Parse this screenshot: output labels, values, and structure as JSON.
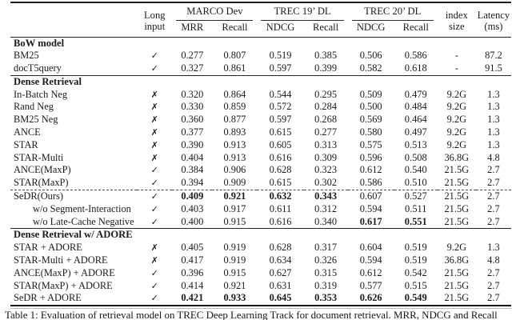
{
  "table": {
    "header": {
      "long_input": [
        "Long",
        "input"
      ],
      "groups": [
        {
          "label": "MARCO Dev",
          "sub": [
            "MRR",
            "Recall"
          ]
        },
        {
          "label": "TREC 19’ DL",
          "sub": [
            "NDCG",
            "Recall"
          ]
        },
        {
          "label": "TREC 20’ DL",
          "sub": [
            "NDCG",
            "Recall"
          ]
        }
      ],
      "index_size": [
        "index",
        "size"
      ],
      "latency": [
        "Latency",
        "(ms)"
      ]
    },
    "sections": [
      {
        "title": "BoW model",
        "rows": [
          {
            "name": "BM25",
            "long_input": "✓",
            "values": [
              "0.277",
              "0.807",
              "0.519",
              "0.385",
              "0.506",
              "0.586",
              "-",
              "87.2"
            ],
            "bold": []
          },
          {
            "name": "docT5query",
            "long_input": "✓",
            "values": [
              "0.327",
              "0.861",
              "0.597",
              "0.399",
              "0.582",
              "0.618",
              "-",
              "91.5"
            ],
            "bold": []
          }
        ]
      },
      {
        "title": "Dense Retrieval",
        "rows": [
          {
            "name": "In-Batch Neg",
            "long_input": "✗",
            "values": [
              "0.320",
              "0.864",
              "0.544",
              "0.295",
              "0.509",
              "0.479",
              "9.2G",
              "1.3"
            ],
            "bold": []
          },
          {
            "name": "Rand Neg",
            "long_input": "✗",
            "values": [
              "0.330",
              "0.859",
              "0.572",
              "0.284",
              "0.500",
              "0.484",
              "9.2G",
              "1.3"
            ],
            "bold": []
          },
          {
            "name": "BM25 Neg",
            "long_input": "✗",
            "values": [
              "0.360",
              "0.877",
              "0.597",
              "0.268",
              "0.569",
              "0.464",
              "9.2G",
              "1.3"
            ],
            "bold": []
          },
          {
            "name": "ANCE",
            "long_input": "✗",
            "values": [
              "0.377",
              "0.893",
              "0.615",
              "0.277",
              "0.580",
              "0.497",
              "9.2G",
              "1.3"
            ],
            "bold": []
          },
          {
            "name": "STAR",
            "long_input": "✗",
            "values": [
              "0.390",
              "0.913",
              "0.605",
              "0.313",
              "0.575",
              "0.513",
              "9.2G",
              "1.3"
            ],
            "bold": []
          },
          {
            "name": "STAR-Multi",
            "long_input": "✗",
            "values": [
              "0.404",
              "0.913",
              "0.616",
              "0.309",
              "0.596",
              "0.508",
              "36.8G",
              "4.8"
            ],
            "bold": []
          },
          {
            "name": "ANCE(MaxP)",
            "long_input": "✓",
            "values": [
              "0.384",
              "0.906",
              "0.628",
              "0.323",
              "0.612",
              "0.540",
              "21.5G",
              "2.7"
            ],
            "bold": []
          },
          {
            "name": "STAR(MaxP)",
            "long_input": "✓",
            "values": [
              "0.394",
              "0.909",
              "0.615",
              "0.302",
              "0.586",
              "0.510",
              "21.5G",
              "2.7"
            ],
            "bold": []
          },
          {
            "name": "SeDR(Ours)",
            "long_input": "✓",
            "dashed_above": true,
            "values": [
              "0.409",
              "0.921",
              "0.632",
              "0.343",
              "0.607",
              "0.527",
              "21.5G",
              "2.7"
            ],
            "bold": [
              0,
              1,
              2,
              3
            ]
          },
          {
            "name": "w/o Segment-Interaction",
            "indent": true,
            "long_input": "✓",
            "values": [
              "0.403",
              "0.917",
              "0.611",
              "0.312",
              "0.594",
              "0.511",
              "21.5G",
              "2.7"
            ],
            "bold": []
          },
          {
            "name": "w/o Late-Cache Negative",
            "indent": true,
            "long_input": "✓",
            "values": [
              "0.400",
              "0.915",
              "0.616",
              "0.340",
              "0.617",
              "0.551",
              "21.5G",
              "2.7"
            ],
            "bold": [
              4,
              5
            ]
          }
        ]
      },
      {
        "title": "Dense Retrieval w/ ADORE",
        "rows": [
          {
            "name": "STAR + ADORE",
            "long_input": "✗",
            "values": [
              "0.405",
              "0.919",
              "0.628",
              "0.317",
              "0.604",
              "0.519",
              "9.2G",
              "1.3"
            ],
            "bold": []
          },
          {
            "name": "STAR-Multi + ADORE",
            "long_input": "✗",
            "values": [
              "0.417",
              "0.919",
              "0.634",
              "0.326",
              "0.594",
              "0.519",
              "36.8G",
              "4.8"
            ],
            "bold": []
          },
          {
            "name": "ANCE(MaxP) + ADORE",
            "long_input": "✓",
            "values": [
              "0.396",
              "0.915",
              "0.627",
              "0.315",
              "0.612",
              "0.542",
              "21.5G",
              "2.7"
            ],
            "bold": []
          },
          {
            "name": "STAR(MaxP) + ADORE",
            "long_input": "✓",
            "values": [
              "0.414",
              "0.921",
              "0.631",
              "0.319",
              "0.577",
              "0.515",
              "21.5G",
              "2.7"
            ],
            "bold": []
          },
          {
            "name": "SeDR + ADORE",
            "long_input": "✓",
            "values": [
              "0.421",
              "0.933",
              "0.645",
              "0.353",
              "0.626",
              "0.549",
              "21.5G",
              "2.7"
            ],
            "bold": [
              0,
              1,
              2,
              3,
              4,
              5
            ]
          }
        ]
      }
    ]
  },
  "caption": "Table 1: Evaluation of retrieval model on TREC Deep Learning Track for document retrieval. MRR, NDCG and Recall",
  "colors": {
    "text": "#1b1b1b",
    "rule": "#1f1f1f"
  }
}
